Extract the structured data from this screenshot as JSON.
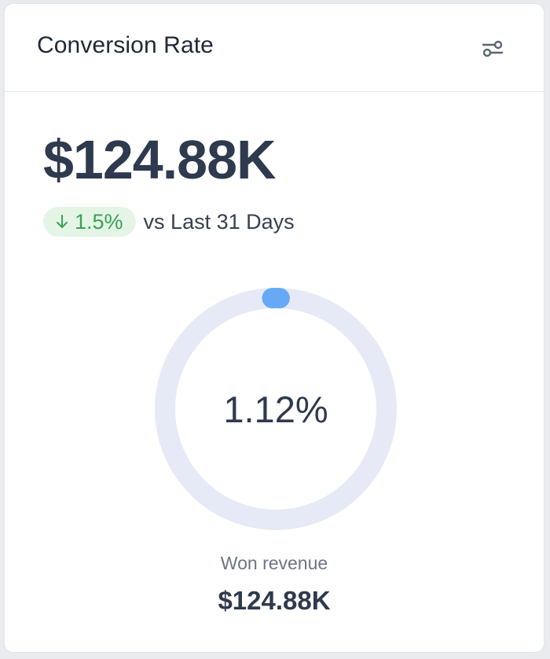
{
  "card": {
    "title": "Conversion Rate",
    "filter_icon": "sliders-icon"
  },
  "summary": {
    "value": "$124.88K",
    "delta": "1.5%",
    "delta_direction": "down",
    "delta_icon": "arrow-down-icon",
    "comparison": "vs Last 31 Days"
  },
  "gauge": {
    "value_label": "1.12%",
    "value": 1.12,
    "max": 100,
    "track_color": "#e6eaf6",
    "progress_color": "#66aaf5"
  },
  "footer": {
    "label": "Won revenue",
    "value": "$124.88K"
  },
  "colors": {
    "positive_bg": "#e4f5e6",
    "positive_text": "#3aa155",
    "text_primary": "#2e3a4d"
  }
}
